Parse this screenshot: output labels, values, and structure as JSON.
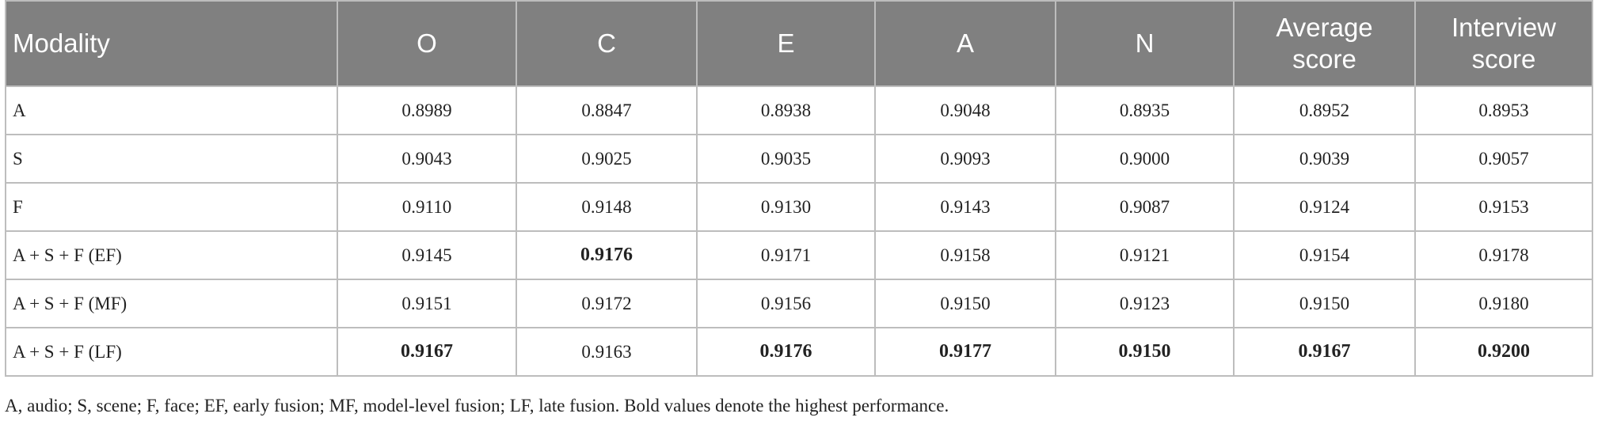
{
  "table": {
    "header": [
      "Modality",
      "O",
      "C",
      "E",
      "A",
      "N",
      "Average score",
      "Interview score"
    ],
    "rows": [
      [
        "A",
        "0.8989",
        "0.8847",
        "0.8938",
        "0.9048",
        "0.8935",
        "0.8952",
        "0.8953"
      ],
      [
        "S",
        "0.9043",
        "0.9025",
        "0.9035",
        "0.9093",
        "0.9000",
        "0.9039",
        "0.9057"
      ],
      [
        "F",
        "0.9110",
        "0.9148",
        "0.9130",
        "0.9143",
        "0.9087",
        "0.9124",
        "0.9153"
      ],
      [
        "A + S + F (EF)",
        "0.9145",
        {
          "text": "0.9176",
          "bold": true
        },
        "0.9171",
        "0.9158",
        "0.9121",
        "0.9154",
        "0.9178"
      ],
      [
        "A + S + F (MF)",
        "0.9151",
        "0.9172",
        "0.9156",
        "0.9150",
        "0.9123",
        "0.9150",
        "0.9180"
      ],
      [
        "A + S + F (LF)",
        {
          "text": "0.9167",
          "bold": true
        },
        "0.9163",
        {
          "text": "0.9176",
          "bold": true
        },
        {
          "text": "0.9177",
          "bold": true
        },
        {
          "text": "0.9150",
          "bold": true
        },
        {
          "text": "0.9167",
          "bold": true
        },
        {
          "text": "0.9200",
          "bold": true
        }
      ]
    ],
    "footnote": "A, audio; S, scene; F, face; EF, early fusion; MF, model-level fusion; LF, late fusion. Bold values denote the highest performance."
  }
}
